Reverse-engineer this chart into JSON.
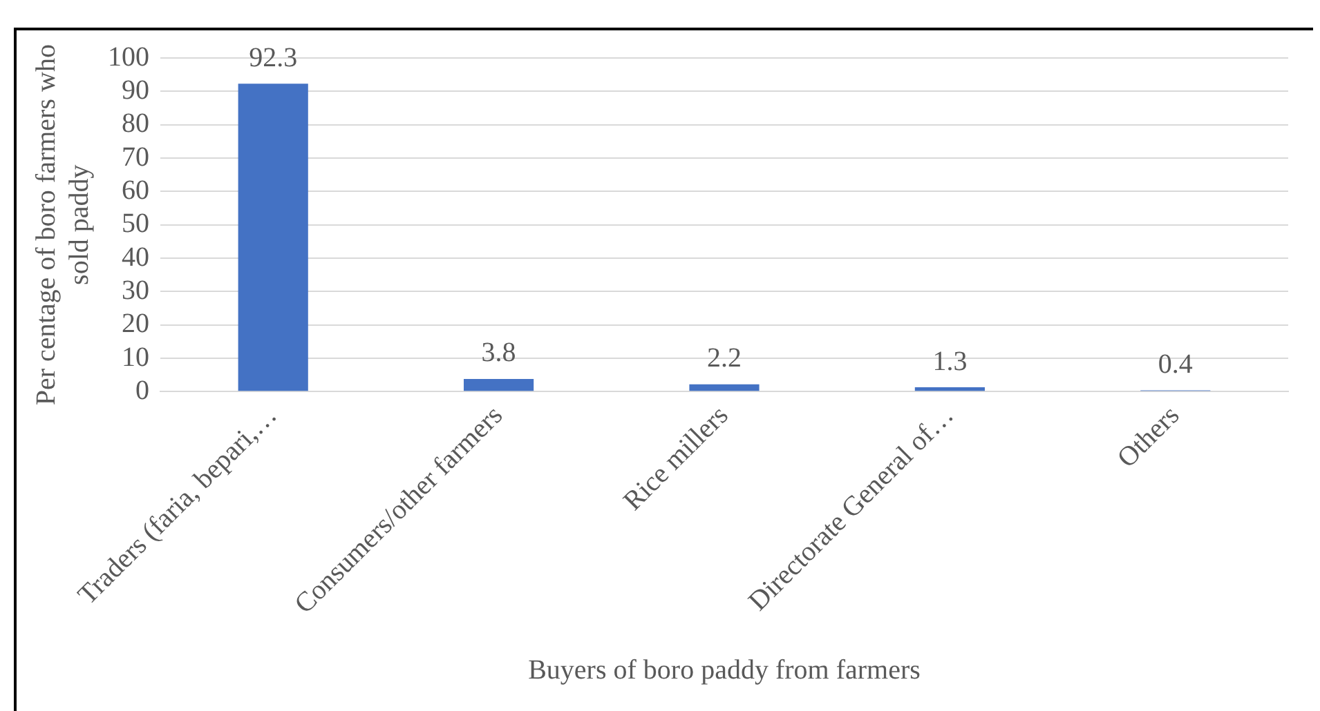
{
  "chart_data": {
    "type": "bar",
    "categories": [
      "Traders (faria, bepari,…",
      "Consumers/other farmers",
      "Rice millers",
      "Directorate General of…",
      "Others"
    ],
    "values": [
      92.3,
      3.8,
      2.2,
      1.3,
      0.4
    ],
    "color": "#4472c4",
    "xlabel": "Buyers of boro paddy from farmers",
    "ylabel": "Per centage of boro farmers who sold paddy",
    "ylim": [
      0,
      100
    ],
    "yticks": [
      0,
      10,
      20,
      30,
      40,
      50,
      60,
      70,
      80,
      90,
      100
    ],
    "grid": "y",
    "data_labels": true,
    "legend": false
  }
}
